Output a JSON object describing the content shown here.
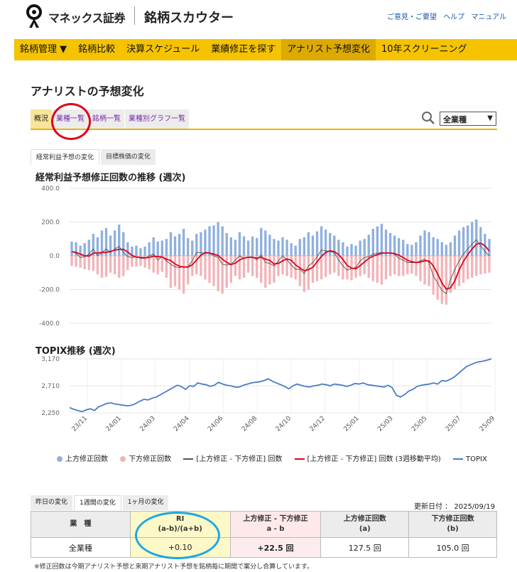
{
  "header": {
    "brand": "マネックス証券",
    "product": "銘柄スカウター",
    "links": [
      "ご意見・ご要望",
      "ヘルプ",
      "マニュアル"
    ]
  },
  "menu": {
    "items": [
      "銘柄管理 ▼",
      "銘柄比較",
      "決算スケジュール",
      "業績修正を探す",
      "アナリスト予想変化",
      "10年スクリーニング"
    ],
    "active_index": 4
  },
  "page_title": "アナリストの予想変化",
  "subtabs": {
    "items": [
      "概況",
      "業種一覧",
      "銘柄一覧",
      "業種別グラフ一覧"
    ],
    "active_index": 0
  },
  "sector_select": {
    "value": "全業種"
  },
  "chart_tabs": {
    "items": [
      "経常利益予想の変化",
      "目標株価の変化"
    ],
    "active_index": 0
  },
  "chart_data": [
    {
      "type": "bar",
      "title": "経常利益予想修正回数の推移 (週次)",
      "ylim": [
        -400,
        400
      ],
      "yticks": [
        "400.0",
        "200.0",
        "0.0",
        "-200.0",
        "-400.0"
      ],
      "grid": true,
      "series": [
        {
          "name": "上方修正回数",
          "color": "#8fb0dd",
          "values": [
            85,
            80,
            60,
            75,
            95,
            130,
            110,
            150,
            165,
            120,
            150,
            185,
            140,
            80,
            55,
            60,
            45,
            55,
            80,
            110,
            85,
            90,
            100,
            140,
            115,
            130,
            160,
            105,
            90,
            130,
            140,
            155,
            175,
            180,
            200,
            175,
            135,
            110,
            95,
            140,
            115,
            90,
            115,
            105,
            165,
            150,
            125,
            100,
            90,
            110,
            95,
            75,
            60,
            100,
            110,
            140,
            120,
            145,
            175,
            155,
            135,
            120,
            95,
            80,
            55,
            70,
            60,
            90,
            100,
            125,
            160,
            175,
            190,
            155,
            135,
            120,
            105,
            95,
            70,
            65,
            80,
            120,
            150,
            140,
            110,
            100,
            80,
            65,
            80,
            120,
            150,
            170,
            180,
            200,
            215,
            170,
            130,
            100
          ]
        },
        {
          "name": "下方修正回数",
          "color": "#f2b4b8",
          "values": [
            60,
            65,
            70,
            80,
            85,
            90,
            110,
            130,
            125,
            100,
            110,
            130,
            120,
            85,
            65,
            65,
            60,
            70,
            80,
            100,
            110,
            95,
            130,
            190,
            180,
            200,
            225,
            170,
            120,
            110,
            120,
            140,
            160,
            180,
            210,
            225,
            190,
            160,
            120,
            140,
            130,
            100,
            120,
            130,
            160,
            190,
            170,
            160,
            120,
            110,
            120,
            130,
            140,
            180,
            215,
            200,
            160,
            150,
            140,
            125,
            110,
            100,
            120,
            140,
            140,
            145,
            130,
            120,
            110,
            130,
            150,
            160,
            170,
            140,
            120,
            110,
            120,
            120,
            110,
            105,
            120,
            150,
            170,
            180,
            230,
            260,
            285,
            290,
            220,
            200,
            180,
            160,
            140,
            130,
            120,
            110,
            105,
            100
          ]
        },
        {
          "name": "[上方修正 - 下方修正] 回数",
          "color": "#555555"
        },
        {
          "name": "[上方修正 - 下方修正] 回数 (3週移動平均)",
          "color": "#e0001a"
        }
      ]
    },
    {
      "type": "line",
      "title": "TOPIX推移 (週次)",
      "ylim": [
        2250,
        3170
      ],
      "yticks": [
        "3,170",
        "2,710",
        "2,250"
      ],
      "x_tick_labels": [
        "23/11",
        "24/01",
        "24/03",
        "24/04",
        "24/06",
        "24/08",
        "24/10",
        "24/12",
        "25/01",
        "25/03",
        "25/05",
        "25/07",
        "25/09"
      ],
      "grid": true,
      "series": [
        {
          "name": "TOPIX",
          "color": "#4a7cc8",
          "values": [
            2340,
            2310,
            2290,
            2270,
            2300,
            2320,
            2290,
            2350,
            2380,
            2410,
            2420,
            2400,
            2390,
            2380,
            2370,
            2380,
            2410,
            2450,
            2480,
            2470,
            2500,
            2520,
            2560,
            2600,
            2640,
            2680,
            2720,
            2700,
            2650,
            2710,
            2700,
            2760,
            2740,
            2730,
            2700,
            2720,
            2770,
            2740,
            2720,
            2710,
            2690,
            2690,
            2720,
            2740,
            2760,
            2770,
            2780,
            2800,
            2830,
            2790,
            2760,
            2730,
            2700,
            2660,
            2710,
            2740,
            2720,
            2700,
            2690,
            2710,
            2720,
            2740,
            2730,
            2710,
            2740,
            2730,
            2720,
            2700,
            2720,
            2750,
            2740,
            2760,
            2730,
            2720,
            2710,
            2700,
            2690,
            2720,
            2680,
            2550,
            2520,
            2560,
            2620,
            2650,
            2700,
            2720,
            2730,
            2740,
            2760,
            2740,
            2800,
            2790,
            2820,
            2860,
            2920,
            2980,
            3040,
            3070,
            3100,
            3120,
            3130,
            3150,
            3170
          ]
        }
      ]
    }
  ],
  "legend": [
    "上方修正回数",
    "下方修正回数",
    "[上方修正 - 下方修正] 回数",
    "[上方修正 - 下方修正] 回数 (3週移動平均)",
    "TOPIX"
  ],
  "period_tabs": {
    "items": [
      "昨日の変化",
      "1週間の変化",
      "1ヶ月の変化"
    ],
    "active_index": 1
  },
  "updated": "更新日付 ： 2025/09/19",
  "table": {
    "headers": {
      "sector": "業　種",
      "ri_l1": "RI",
      "ri_l2": "(a-b)/(a+b)",
      "diff_l1": "上方修正 - 下方修正",
      "diff_l2": "a - b",
      "up_l1": "上方修正回数",
      "up_l2": "(a)",
      "down_l1": "下方修正回数",
      "down_l2": "(b)"
    },
    "row": {
      "sector": "全業種",
      "ri": "+0.10",
      "diff": "+22.5 回",
      "up": "127.5 回",
      "down": "105.0 回"
    }
  },
  "note": "※修正回数は今期アナリスト予想と来期アナリスト予想を銘柄毎に期間で案分し合算しています。"
}
